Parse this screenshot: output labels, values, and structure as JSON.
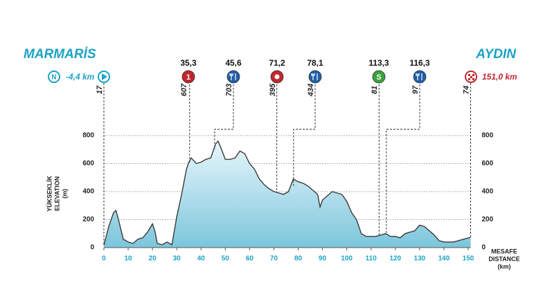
{
  "chart_data": {
    "type": "area",
    "start": {
      "city": "MARMARİS",
      "marker": "N",
      "distance_label": "-4,4 km",
      "elevation": 17
    },
    "finish": {
      "city": "AYDIN",
      "distance_label": "151,0 km",
      "elevation": 74
    },
    "waypoints": [
      {
        "km": 35.3,
        "km_label": "35,3",
        "elevation": 607,
        "icon": "1",
        "color": "#c0272d"
      },
      {
        "km": 45.6,
        "km_label": "45,6",
        "elevation": 703,
        "icon": "feed",
        "color": "#1f5fa8"
      },
      {
        "km": 71.2,
        "km_label": "71,2",
        "elevation": 395,
        "icon": "sprint",
        "color": "#c0272d"
      },
      {
        "km": 78.1,
        "km_label": "78,1",
        "elevation": 434,
        "icon": "feed",
        "color": "#1f5fa8"
      },
      {
        "km": 113.3,
        "km_label": "113,3",
        "elevation": 81,
        "icon": "S",
        "color": "#3aa33a"
      },
      {
        "km": 116.3,
        "km_label": "116,3",
        "elevation": 97,
        "icon": "feed",
        "color": "#1f5fa8"
      }
    ],
    "y_label": [
      "YÜKSEKLİK",
      "ELEVATION",
      "(m)"
    ],
    "x_label": [
      "MESAFE",
      "DISTANCE",
      "(km)"
    ],
    "x": [
      0,
      2,
      4,
      5,
      6,
      8,
      10,
      12,
      14,
      16,
      18,
      20,
      21,
      22,
      24,
      26,
      28,
      30,
      32,
      34,
      35,
      36,
      38,
      40,
      42,
      44,
      46,
      47,
      48,
      50,
      52,
      54,
      56,
      58,
      60,
      62,
      64,
      66,
      68,
      70,
      72,
      74,
      76,
      78,
      80,
      82,
      84,
      86,
      88,
      89,
      90,
      92,
      94,
      96,
      98,
      100,
      102,
      104,
      106,
      108,
      110,
      112,
      114,
      116,
      118,
      120,
      122,
      124,
      126,
      128,
      130,
      132,
      134,
      136,
      138,
      140,
      144,
      148,
      151
    ],
    "values": [
      17,
      150,
      250,
      265,
      200,
      60,
      40,
      30,
      60,
      70,
      110,
      170,
      120,
      30,
      20,
      40,
      20,
      220,
      380,
      560,
      610,
      640,
      600,
      610,
      630,
      640,
      740,
      760,
      720,
      630,
      630,
      640,
      690,
      670,
      600,
      560,
      490,
      450,
      420,
      400,
      390,
      380,
      400,
      490,
      470,
      460,
      440,
      410,
      380,
      290,
      340,
      370,
      400,
      390,
      380,
      330,
      250,
      200,
      100,
      80,
      80,
      80,
      90,
      100,
      80,
      80,
      70,
      100,
      110,
      120,
      160,
      150,
      120,
      90,
      50,
      40,
      40,
      60,
      74
    ],
    "xlim": [
      0,
      151
    ],
    "ylim": [
      0,
      800
    ],
    "xticks": [
      0,
      10,
      20,
      30,
      40,
      50,
      60,
      70,
      80,
      90,
      100,
      110,
      120,
      130,
      140,
      150
    ],
    "yticks": [
      0,
      200,
      400,
      600,
      800
    ],
    "grid": true,
    "color": "#9fd6e6",
    "line_color": "#3a3a3a"
  }
}
